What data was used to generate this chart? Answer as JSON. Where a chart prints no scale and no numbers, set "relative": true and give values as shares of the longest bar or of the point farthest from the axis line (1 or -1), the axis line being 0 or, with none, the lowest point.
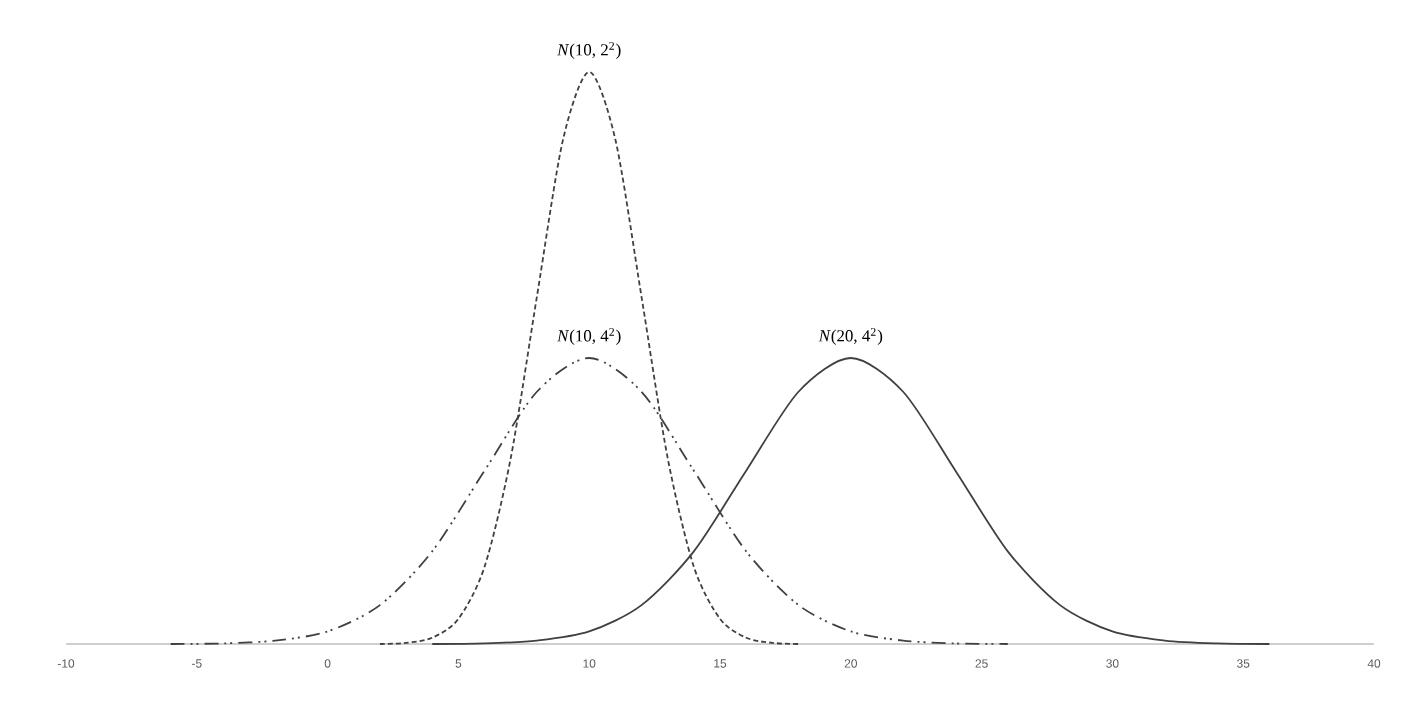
{
  "chart_data": {
    "type": "line",
    "relative": true,
    "xlim": [
      -10,
      40
    ],
    "xticks": [
      -10,
      -5,
      0,
      5,
      10,
      15,
      20,
      25,
      30,
      35,
      40
    ],
    "series": [
      {
        "name": "*N*(10, 2$^{2}$)",
        "x": [
          2,
          3,
          4,
          5,
          6,
          7,
          8,
          9,
          10,
          11,
          12,
          13,
          14,
          15,
          16,
          17,
          18
        ],
        "values": [
          0,
          0.002,
          0.011,
          0.044,
          0.135,
          0.325,
          0.607,
          0.882,
          1,
          0.882,
          0.607,
          0.325,
          0.135,
          0.044,
          0.011,
          0.002,
          0
        ],
        "color": "#404040",
        "line_style": "dotted"
      },
      {
        "name": "*N*(10, 4$^{2}$)",
        "x": [
          -6,
          -4,
          -2,
          0,
          2,
          4,
          6,
          8,
          10,
          12,
          14,
          16,
          18,
          20,
          22,
          24,
          26
        ],
        "values": [
          0,
          0.001,
          0.006,
          0.022,
          0.068,
          0.162,
          0.303,
          0.441,
          0.5,
          0.441,
          0.303,
          0.162,
          0.068,
          0.022,
          0.006,
          0.001,
          0
        ],
        "color": "#404040",
        "line_style": "dashed"
      },
      {
        "name": "*N*(20, 4$^{2}$)",
        "x": [
          4,
          6,
          8,
          10,
          12,
          14,
          16,
          18,
          20,
          22,
          24,
          26,
          28,
          30,
          32,
          34,
          36
        ],
        "values": [
          0,
          0.001,
          0.006,
          0.022,
          0.068,
          0.162,
          0.303,
          0.441,
          0.5,
          0.441,
          0.303,
          0.162,
          0.068,
          0.022,
          0.006,
          0.001,
          0
        ],
        "color": "#404040",
        "line_style": "solid"
      }
    ]
  }
}
